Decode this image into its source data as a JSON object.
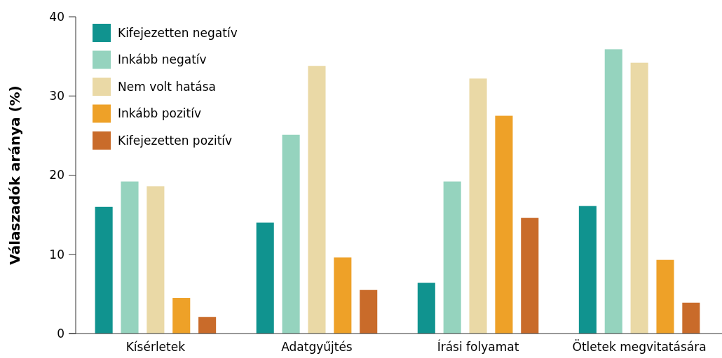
{
  "chart_data": {
    "type": "bar",
    "ylabel": "Válaszadók aránya (%)",
    "categories": [
      "Kísérletek",
      "Adatgyűjtés",
      "Írási folyamat",
      "Ötletek megvitatására"
    ],
    "series": [
      {
        "name": "Kifejezetten negatív",
        "color": "#10938f",
        "values": [
          16,
          14,
          6.4,
          16.1
        ]
      },
      {
        "name": "Inkább negatív",
        "color": "#95d3be",
        "values": [
          19.2,
          25.1,
          19.2,
          35.9
        ]
      },
      {
        "name": "Nem volt hatása",
        "color": "#ead9a6",
        "values": [
          18.6,
          33.8,
          32.2,
          34.2
        ]
      },
      {
        "name": "Inkább pozitív",
        "color": "#eea128",
        "values": [
          4.5,
          9.6,
          27.5,
          9.3
        ]
      },
      {
        "name": "Kifejezetten pozitív",
        "color": "#c96b2a",
        "values": [
          2.1,
          5.5,
          14.6,
          3.9
        ]
      }
    ],
    "ylim": [
      0,
      40
    ],
    "yticks": [
      0,
      10,
      20,
      30,
      40
    ],
    "legend": "top left"
  }
}
